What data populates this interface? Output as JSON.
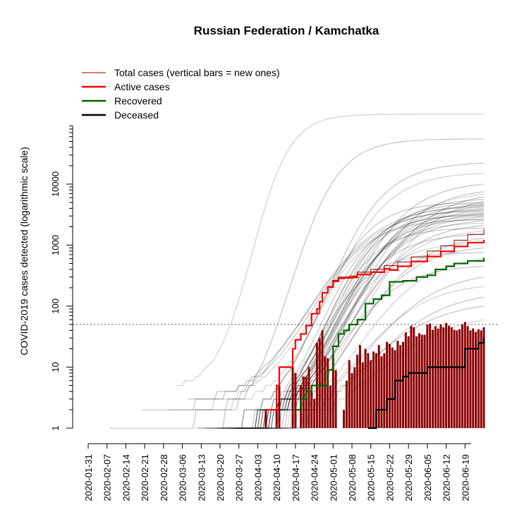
{
  "chart_data": {
    "type": "line",
    "title": "Russian Federation / Kamchatka",
    "ylabel": "COVID-2019 cases detected (logarithmic scale)",
    "xlabel": "",
    "y_scale": "log",
    "ylim": [
      1,
      100000
    ],
    "xlim": [
      "2020-01-31",
      "2020-06-26"
    ],
    "x_tick_labels": [
      "2020-01-31",
      "2020-02-07",
      "2020-02-14",
      "2020-02-21",
      "2020-02-28",
      "2020-03-06",
      "2020-03-13",
      "2020-03-20",
      "2020-03-27",
      "2020-04-03",
      "2020-04-10",
      "2020-04-17",
      "2020-04-24",
      "2020-05-01",
      "2020-05-08",
      "2020-05-15",
      "2020-05-22",
      "2020-05-29",
      "2020-06-05",
      "2020-06-12",
      "2020-06-19"
    ],
    "y_tick_labels": [
      "1",
      "10",
      "100",
      "1000",
      "10000"
    ],
    "threshold_line": 50,
    "legend_position": "top-left",
    "legend": [
      {
        "label": "Total cases (vertical bars = new ones)",
        "color": "#8b0000"
      },
      {
        "label": "Active cases",
        "color": "#ff0000"
      },
      {
        "label": "Recovered",
        "color": "#006400"
      },
      {
        "label": "Deceased",
        "color": "#000000"
      }
    ],
    "series": [
      {
        "name": "Total cases (vertical bars = new ones)",
        "color": "#8b0000",
        "points": [
          [
            "2020-04-06",
            2
          ],
          [
            "2020-04-10",
            5
          ],
          [
            "2020-04-11",
            10
          ],
          [
            "2020-04-15",
            10
          ],
          [
            "2020-04-16",
            20
          ],
          [
            "2020-04-17",
            28
          ],
          [
            "2020-04-19",
            35
          ],
          [
            "2020-04-21",
            48
          ],
          [
            "2020-04-23",
            75
          ],
          [
            "2020-04-26",
            118
          ],
          [
            "2020-04-27",
            165
          ],
          [
            "2020-04-29",
            210
          ],
          [
            "2020-05-01",
            265
          ],
          [
            "2020-05-03",
            300
          ],
          [
            "2020-05-07",
            310
          ],
          [
            "2020-05-10",
            360
          ],
          [
            "2020-05-15",
            400
          ],
          [
            "2020-05-20",
            460
          ],
          [
            "2020-05-25",
            530
          ],
          [
            "2020-05-30",
            640
          ],
          [
            "2020-06-05",
            800
          ],
          [
            "2020-06-10",
            970
          ],
          [
            "2020-06-15",
            1200
          ],
          [
            "2020-06-20",
            1500
          ],
          [
            "2020-06-26",
            1850
          ]
        ]
      },
      {
        "name": "Active cases",
        "color": "#ff0000",
        "points": [
          [
            "2020-04-06",
            2
          ],
          [
            "2020-04-10",
            5
          ],
          [
            "2020-04-11",
            10
          ],
          [
            "2020-04-15",
            10
          ],
          [
            "2020-04-16",
            20
          ],
          [
            "2020-04-17",
            28
          ],
          [
            "2020-04-19",
            35
          ],
          [
            "2020-04-21",
            48
          ],
          [
            "2020-04-23",
            75
          ],
          [
            "2020-04-25",
            90
          ],
          [
            "2020-04-26",
            118
          ],
          [
            "2020-04-27",
            165
          ],
          [
            "2020-04-29",
            205
          ],
          [
            "2020-05-01",
            255
          ],
          [
            "2020-05-03",
            285
          ],
          [
            "2020-05-05",
            290
          ],
          [
            "2020-05-08",
            295
          ],
          [
            "2020-05-10",
            330
          ],
          [
            "2020-05-15",
            360
          ],
          [
            "2020-05-20",
            410
          ],
          [
            "2020-05-22",
            390
          ],
          [
            "2020-05-25",
            450
          ],
          [
            "2020-05-30",
            540
          ],
          [
            "2020-06-05",
            650
          ],
          [
            "2020-06-10",
            790
          ],
          [
            "2020-06-15",
            950
          ],
          [
            "2020-06-20",
            1100
          ],
          [
            "2020-06-26",
            1220
          ]
        ]
      },
      {
        "name": "Recovered",
        "color": "#006400",
        "points": [
          [
            "2020-04-17",
            2
          ],
          [
            "2020-04-19",
            3
          ],
          [
            "2020-04-21",
            4
          ],
          [
            "2020-04-23",
            5
          ],
          [
            "2020-04-29",
            9
          ],
          [
            "2020-05-01",
            22
          ],
          [
            "2020-05-03",
            35
          ],
          [
            "2020-05-05",
            40
          ],
          [
            "2020-05-07",
            50
          ],
          [
            "2020-05-10",
            60
          ],
          [
            "2020-05-13",
            110
          ],
          [
            "2020-05-16",
            130
          ],
          [
            "2020-05-19",
            150
          ],
          [
            "2020-05-22",
            250
          ],
          [
            "2020-05-27",
            260
          ],
          [
            "2020-06-01",
            300
          ],
          [
            "2020-06-05",
            320
          ],
          [
            "2020-06-08",
            400
          ],
          [
            "2020-06-12",
            450
          ],
          [
            "2020-06-15",
            500
          ],
          [
            "2020-06-20",
            550
          ],
          [
            "2020-06-26",
            620
          ]
        ]
      },
      {
        "name": "Deceased",
        "color": "#000000",
        "points": [
          [
            "2020-05-14",
            1
          ],
          [
            "2020-05-17",
            2
          ],
          [
            "2020-05-21",
            3
          ],
          [
            "2020-05-24",
            6
          ],
          [
            "2020-05-27",
            7
          ],
          [
            "2020-05-29",
            8
          ],
          [
            "2020-06-05",
            10
          ],
          [
            "2020-06-19",
            20
          ],
          [
            "2020-06-24",
            25
          ],
          [
            "2020-06-26",
            30
          ]
        ]
      }
    ],
    "new_cases_bars": [
      [
        "2020-04-06",
        2
      ],
      [
        "2020-04-10",
        2
      ],
      [
        "2020-04-11",
        5
      ],
      [
        "2020-04-16",
        10
      ],
      [
        "2020-04-17",
        8
      ],
      [
        "2020-04-19",
        5
      ],
      [
        "2020-04-20",
        7
      ],
      [
        "2020-04-21",
        7
      ],
      [
        "2020-04-22",
        10
      ],
      [
        "2020-04-23",
        4
      ],
      [
        "2020-04-24",
        3
      ],
      [
        "2020-04-25",
        25
      ],
      [
        "2020-04-26",
        30
      ],
      [
        "2020-04-27",
        40
      ],
      [
        "2020-04-28",
        15
      ],
      [
        "2020-04-29",
        14
      ],
      [
        "2020-04-30",
        5
      ],
      [
        "2020-05-01",
        16
      ],
      [
        "2020-05-02",
        9
      ],
      [
        "2020-05-05",
        2
      ],
      [
        "2020-05-06",
        6
      ],
      [
        "2020-05-07",
        13
      ],
      [
        "2020-05-08",
        8
      ],
      [
        "2020-05-09",
        10
      ],
      [
        "2020-05-10",
        16
      ],
      [
        "2020-05-11",
        23
      ],
      [
        "2020-05-12",
        12
      ],
      [
        "2020-05-13",
        20
      ],
      [
        "2020-05-14",
        17
      ],
      [
        "2020-05-15",
        13
      ],
      [
        "2020-05-16",
        18
      ],
      [
        "2020-05-17",
        17
      ],
      [
        "2020-05-18",
        23
      ],
      [
        "2020-05-19",
        15
      ],
      [
        "2020-05-20",
        17
      ],
      [
        "2020-05-21",
        26
      ],
      [
        "2020-05-22",
        24
      ],
      [
        "2020-05-23",
        21
      ],
      [
        "2020-05-24",
        19
      ],
      [
        "2020-05-25",
        27
      ],
      [
        "2020-05-26",
        23
      ],
      [
        "2020-05-27",
        26
      ],
      [
        "2020-05-28",
        37
      ],
      [
        "2020-05-29",
        32
      ],
      [
        "2020-05-30",
        48
      ],
      [
        "2020-05-31",
        45
      ],
      [
        "2020-06-01",
        32
      ],
      [
        "2020-06-02",
        36
      ],
      [
        "2020-06-03",
        34
      ],
      [
        "2020-06-04",
        34
      ],
      [
        "2020-06-05",
        50
      ],
      [
        "2020-06-06",
        52
      ],
      [
        "2020-06-07",
        41
      ],
      [
        "2020-06-08",
        47
      ],
      [
        "2020-06-09",
        43
      ],
      [
        "2020-06-10",
        50
      ],
      [
        "2020-06-11",
        45
      ],
      [
        "2020-06-12",
        53
      ],
      [
        "2020-06-13",
        48
      ],
      [
        "2020-06-14",
        45
      ],
      [
        "2020-06-15",
        41
      ],
      [
        "2020-06-16",
        40
      ],
      [
        "2020-06-17",
        42
      ],
      [
        "2020-06-18",
        50
      ],
      [
        "2020-06-19",
        55
      ],
      [
        "2020-06-20",
        47
      ],
      [
        "2020-06-21",
        40
      ],
      [
        "2020-06-22",
        43
      ],
      [
        "2020-06-23",
        38
      ],
      [
        "2020-06-24",
        42
      ],
      [
        "2020-06-25",
        40
      ],
      [
        "2020-06-26",
        45
      ]
    ],
    "background_regions_curves": [
      {
        "start": "2020-03-04",
        "start_value": 5,
        "end_value": 140000,
        "mid": "2020-04-01",
        "steep": 7
      },
      {
        "start": "2020-03-12",
        "start_value": 1,
        "end_value": 55000,
        "mid": "2020-04-15",
        "steep": 9
      },
      {
        "start": "2020-03-15",
        "start_value": 1,
        "end_value": 22000,
        "mid": "2020-04-28",
        "steep": 11
      },
      {
        "start": "2020-03-10",
        "start_value": 2,
        "end_value": 15000,
        "mid": "2020-04-30",
        "steep": 11
      },
      {
        "start": "2020-03-18",
        "start_value": 1,
        "end_value": 10000,
        "mid": "2020-05-05",
        "steep": 12
      },
      {
        "start": "2020-03-20",
        "start_value": 1,
        "end_value": 7500,
        "mid": "2020-05-08",
        "steep": 12
      },
      {
        "start": "2020-03-14",
        "start_value": 1,
        "end_value": 6800,
        "mid": "2020-05-06",
        "steep": 12
      },
      {
        "start": "2020-03-22",
        "start_value": 1,
        "end_value": 6200,
        "mid": "2020-05-10",
        "steep": 13
      },
      {
        "start": "2020-03-19",
        "start_value": 1,
        "end_value": 5600,
        "mid": "2020-05-02",
        "steep": 11
      },
      {
        "start": "2020-03-24",
        "start_value": 1,
        "end_value": 5200,
        "mid": "2020-05-12",
        "steep": 13
      },
      {
        "start": "2020-03-21",
        "start_value": 1,
        "end_value": 4800,
        "mid": "2020-05-01",
        "steep": 10
      },
      {
        "start": "2020-03-25",
        "start_value": 1,
        "end_value": 4600,
        "mid": "2020-05-04",
        "steep": 11
      },
      {
        "start": "2020-03-26",
        "start_value": 1,
        "end_value": 4400,
        "mid": "2020-05-07",
        "steep": 12
      },
      {
        "start": "2020-03-23",
        "start_value": 1,
        "end_value": 4200,
        "mid": "2020-04-29",
        "steep": 10
      },
      {
        "start": "2020-03-27",
        "start_value": 1,
        "end_value": 4000,
        "mid": "2020-05-03",
        "steep": 11
      },
      {
        "start": "2020-03-28",
        "start_value": 1,
        "end_value": 3800,
        "mid": "2020-05-06",
        "steep": 12
      },
      {
        "start": "2020-03-20",
        "start_value": 1,
        "end_value": 3600,
        "mid": "2020-04-27",
        "steep": 10
      },
      {
        "start": "2020-03-29",
        "start_value": 1,
        "end_value": 3400,
        "mid": "2020-05-02",
        "steep": 11
      },
      {
        "start": "2020-03-30",
        "start_value": 1,
        "end_value": 3300,
        "mid": "2020-05-05",
        "steep": 12
      },
      {
        "start": "2020-03-25",
        "start_value": 1,
        "end_value": 3100,
        "mid": "2020-04-28",
        "steep": 10
      },
      {
        "start": "2020-03-31",
        "start_value": 1,
        "end_value": 3000,
        "mid": "2020-05-01",
        "steep": 11
      },
      {
        "start": "2020-04-01",
        "start_value": 1,
        "end_value": 2900,
        "mid": "2020-05-04",
        "steep": 12
      },
      {
        "start": "2020-03-27",
        "start_value": 1,
        "end_value": 2700,
        "mid": "2020-04-30",
        "steep": 11
      },
      {
        "start": "2020-04-02",
        "start_value": 1,
        "end_value": 2500,
        "mid": "2020-05-03",
        "steep": 12
      },
      {
        "start": "2020-03-28",
        "start_value": 1,
        "end_value": 2300,
        "mid": "2020-04-29",
        "steep": 11
      },
      {
        "start": "2020-04-03",
        "start_value": 1,
        "end_value": 2100,
        "mid": "2020-05-06",
        "steep": 12
      },
      {
        "start": "2020-03-26",
        "start_value": 1,
        "end_value": 1900,
        "mid": "2020-04-27",
        "steep": 10
      },
      {
        "start": "2020-04-04",
        "start_value": 1,
        "end_value": 1700,
        "mid": "2020-05-05",
        "steep": 12
      },
      {
        "start": "2020-03-29",
        "start_value": 1,
        "end_value": 1500,
        "mid": "2020-04-30",
        "steep": 11
      },
      {
        "start": "2020-04-05",
        "start_value": 1,
        "end_value": 1300,
        "mid": "2020-05-08",
        "steep": 13
      },
      {
        "start": "2020-03-30",
        "start_value": 1,
        "end_value": 1100,
        "mid": "2020-05-01",
        "steep": 11
      },
      {
        "start": "2020-04-06",
        "start_value": 1,
        "end_value": 900,
        "mid": "2020-05-07",
        "steep": 12
      },
      {
        "start": "2020-03-22",
        "start_value": 1,
        "end_value": 750,
        "mid": "2020-04-25",
        "steep": 10
      },
      {
        "start": "2020-04-07",
        "start_value": 1,
        "end_value": 600,
        "mid": "2020-05-10",
        "steep": 13
      },
      {
        "start": "2020-03-31",
        "start_value": 1,
        "end_value": 450,
        "mid": "2020-05-02",
        "steep": 12
      },
      {
        "start": "2020-04-08",
        "start_value": 1,
        "end_value": 300,
        "mid": "2020-05-12",
        "steep": 14
      },
      {
        "start": "2020-04-02",
        "start_value": 1,
        "end_value": 210,
        "mid": "2020-05-10",
        "steep": 13
      },
      {
        "start": "2020-04-09",
        "start_value": 1,
        "end_value": 140,
        "mid": "2020-05-14",
        "steep": 14
      },
      {
        "start": "2020-04-04",
        "start_value": 1,
        "end_value": 100,
        "mid": "2020-05-12",
        "steep": 14
      },
      {
        "start": "2020-04-10",
        "start_value": 1,
        "end_value": 60,
        "mid": "2020-05-16",
        "steep": 15
      },
      {
        "start": "2020-02-08",
        "start_value": 1,
        "end_value": 4500,
        "mid": "2020-04-20",
        "steep": 14
      },
      {
        "start": "2020-02-20",
        "start_value": 2,
        "end_value": 3800,
        "mid": "2020-04-22",
        "steep": 13
      },
      {
        "start": "2020-03-01",
        "start_value": 2,
        "end_value": 3200,
        "mid": "2020-04-24",
        "steep": 12
      },
      {
        "start": "2020-03-08",
        "start_value": 3,
        "end_value": 2600,
        "mid": "2020-04-23",
        "steep": 11
      },
      {
        "start": "2020-03-11",
        "start_value": 1,
        "end_value": 5000,
        "mid": "2020-04-25",
        "steep": 10
      }
    ]
  }
}
